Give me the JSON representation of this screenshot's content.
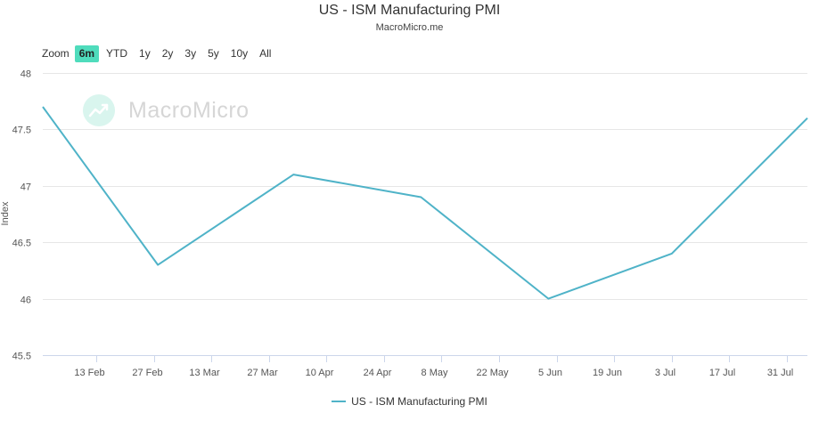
{
  "chart_data": {
    "type": "line",
    "title": "US - ISM Manufacturing PMI",
    "subtitle": "MacroMicro.me",
    "ylabel": "Index",
    "xlabel": "",
    "ylim": [
      45.5,
      48
    ],
    "yticks": [
      "45.5",
      "46",
      "46.5",
      "47",
      "47.5",
      "48"
    ],
    "ytick_values": [
      45.5,
      46,
      46.5,
      47,
      47.5,
      48
    ],
    "xlim_days": [
      0,
      186
    ],
    "xticks": [
      {
        "label": "13 Feb",
        "day": 13
      },
      {
        "label": "27 Feb",
        "day": 27
      },
      {
        "label": "13 Mar",
        "day": 41
      },
      {
        "label": "27 Mar",
        "day": 55
      },
      {
        "label": "10 Apr",
        "day": 69
      },
      {
        "label": "24 Apr",
        "day": 83
      },
      {
        "label": "8 May",
        "day": 97
      },
      {
        "label": "22 May",
        "day": 111
      },
      {
        "label": "5 Jun",
        "day": 125
      },
      {
        "label": "19 Jun",
        "day": 139
      },
      {
        "label": "3 Jul",
        "day": 153
      },
      {
        "label": "17 Jul",
        "day": 167
      },
      {
        "label": "31 Jul",
        "day": 181
      }
    ],
    "series": [
      {
        "name": "US - ISM Manufacturing PMI",
        "color": "#4fb3c8",
        "points": [
          {
            "day": 0,
            "value": 47.7
          },
          {
            "day": 28,
            "value": 46.3
          },
          {
            "day": 61,
            "value": 47.1
          },
          {
            "day": 92,
            "value": 46.9
          },
          {
            "day": 123,
            "value": 46.0
          },
          {
            "day": 153,
            "value": 46.4
          },
          {
            "day": 186,
            "value": 47.6
          }
        ]
      }
    ],
    "grid": true,
    "legend": "bottom-center"
  },
  "zoom": {
    "label": "Zoom",
    "buttons": [
      "6m",
      "YTD",
      "1y",
      "2y",
      "3y",
      "5y",
      "10y",
      "All"
    ],
    "active": "6m"
  },
  "watermark": {
    "text": "MacroMicro"
  },
  "colors": {
    "accent": "#4fdcbc",
    "line": "#4fb3c8",
    "grid": "#e6e6e6"
  }
}
